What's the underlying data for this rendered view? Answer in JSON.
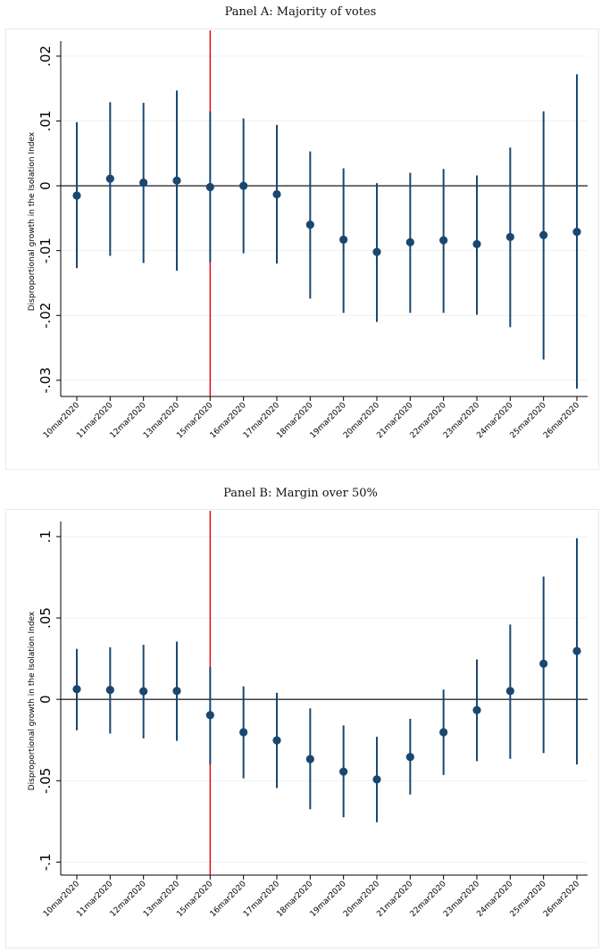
{
  "chart_data": [
    {
      "type": "scatter",
      "title": "Panel A: Majority of votes",
      "xlabel": "",
      "ylabel": "Disproportional growth in the Isolation Index",
      "categories": [
        "10mar2020",
        "11mar2020",
        "12mar2020",
        "13mar2020",
        "15mar2020",
        "16mar2020",
        "17mar2020",
        "18mar2020",
        "19mar2020",
        "20mar2020",
        "21mar2020",
        "22mar2020",
        "23mar2020",
        "24mar2020",
        "25mar2020",
        "26mar2020"
      ],
      "yticks": [
        0.02,
        0.01,
        0,
        -0.01,
        -0.02,
        -0.03
      ],
      "ytick_labels": [
        ".02",
        ".01",
        "0",
        "-.01",
        "-.02",
        "-.03"
      ],
      "ylim": [
        -0.0325,
        0.0215
      ],
      "reference_line_y": 0,
      "event_line_category": "15mar2020",
      "grid": true,
      "marker_color": "#1a476f",
      "event_line_color": "#e8000b",
      "series": [
        {
          "values": [
            -0.0015,
            0.0011,
            0.0005,
            0.0008,
            -0.0002,
            0.0,
            -0.0013,
            -0.006,
            -0.0083,
            -0.0102,
            -0.0087,
            -0.0084,
            -0.009,
            -0.0079,
            -0.0076,
            -0.0071
          ],
          "ci_low": [
            -0.0127,
            -0.0108,
            -0.0119,
            -0.0131,
            -0.0118,
            -0.0104,
            -0.012,
            -0.0174,
            -0.0196,
            -0.021,
            -0.0196,
            -0.0196,
            -0.0199,
            -0.0218,
            -0.0268,
            -0.0313
          ],
          "ci_high": [
            0.0098,
            0.0129,
            0.0128,
            0.0147,
            0.0115,
            0.0104,
            0.0094,
            0.0053,
            0.0027,
            0.0004,
            0.002,
            0.0026,
            0.0016,
            0.0059,
            0.0115,
            0.0172
          ]
        }
      ]
    },
    {
      "type": "scatter",
      "title": "Panel B: Margin over 50%",
      "xlabel": "",
      "ylabel": "Disproportional growth in the Isolation Index",
      "categories": [
        "10mar2020",
        "11mar2020",
        "12mar2020",
        "13mar2020",
        "15mar2020",
        "16mar2020",
        "17mar2020",
        "18mar2020",
        "19mar2020",
        "20mar2020",
        "21mar2020",
        "22mar2020",
        "23mar2020",
        "24mar2020",
        "25mar2020",
        "26mar2020"
      ],
      "yticks": [
        0.1,
        0.05,
        0,
        -0.05,
        -0.1
      ],
      "ytick_labels": [
        ".1",
        ".05",
        "0",
        "-.05",
        "-.1"
      ],
      "ylim": [
        -0.108,
        0.106
      ],
      "reference_line_y": 0,
      "event_line_category": "15mar2020",
      "grid": true,
      "marker_color": "#1a476f",
      "event_line_color": "#e8000b",
      "series": [
        {
          "values": [
            0.0063,
            0.0058,
            0.005,
            0.0052,
            -0.0097,
            -0.0202,
            -0.0252,
            -0.0367,
            -0.0444,
            -0.0492,
            -0.0354,
            -0.0202,
            -0.0066,
            0.0051,
            0.0219,
            0.0297
          ],
          "ci_low": [
            -0.019,
            -0.021,
            -0.024,
            -0.0255,
            -0.04,
            -0.0485,
            -0.0545,
            -0.0675,
            -0.0725,
            -0.0755,
            -0.0585,
            -0.0465,
            -0.038,
            -0.0365,
            -0.033,
            -0.04
          ],
          "ci_high": [
            0.031,
            0.032,
            0.0335,
            0.0355,
            0.02,
            0.008,
            0.004,
            -0.0055,
            -0.016,
            -0.023,
            -0.012,
            0.006,
            0.0245,
            0.046,
            0.0755,
            0.099
          ]
        }
      ]
    }
  ]
}
